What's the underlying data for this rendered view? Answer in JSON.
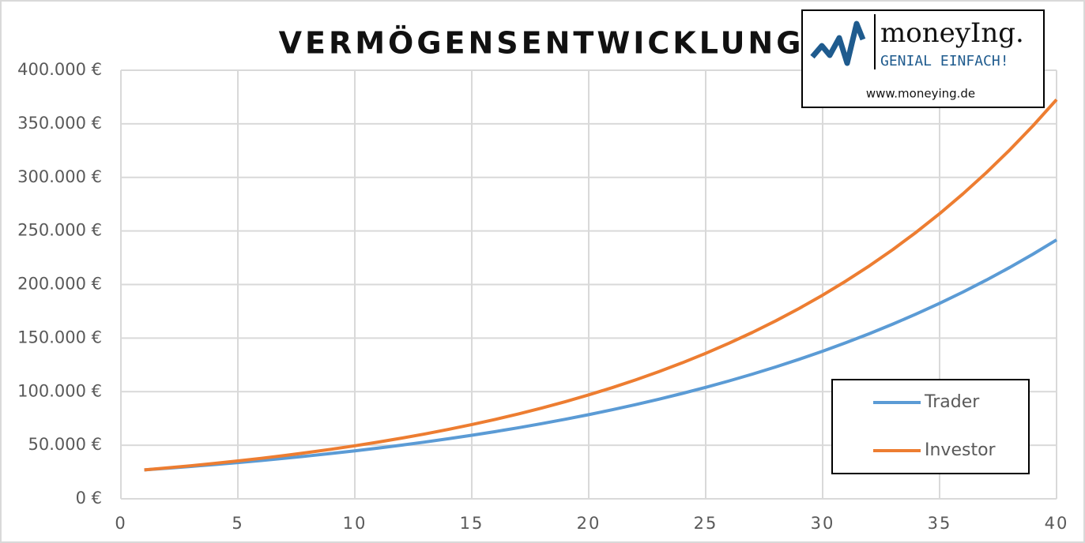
{
  "chart_data": {
    "type": "line",
    "title": "VERMÖGENSENTWICKLUNG",
    "x": [
      1,
      2,
      3,
      4,
      5,
      6,
      7,
      8,
      9,
      10,
      11,
      12,
      13,
      14,
      15,
      16,
      17,
      18,
      19,
      20,
      21,
      22,
      23,
      24,
      25,
      26,
      27,
      28,
      29,
      30,
      31,
      32,
      33,
      34,
      35,
      36,
      37,
      38,
      39,
      40
    ],
    "series": [
      {
        "name": "Trader",
        "color": "#5b9bd5",
        "values": [
          27000,
          28560,
          30210,
          31960,
          33810,
          35760,
          37830,
          40010,
          42330,
          44770,
          47360,
          50100,
          53000,
          56060,
          59300,
          62730,
          66350,
          70190,
          74250,
          78540,
          83080,
          87880,
          92960,
          98340,
          104020,
          110030,
          116390,
          123120,
          130240,
          137770,
          145730,
          154160,
          163070,
          172490,
          182460,
          193010,
          204170,
          215970,
          228460,
          241660
        ]
      },
      {
        "name": "Investor",
        "color": "#ed7d31",
        "values": [
          27000,
          28880,
          30890,
          33040,
          35340,
          37800,
          40430,
          43250,
          46260,
          49480,
          52920,
          56610,
          60550,
          64760,
          69270,
          74090,
          79250,
          84770,
          90670,
          96980,
          103730,
          110950,
          118680,
          126940,
          135780,
          145230,
          155340,
          166160,
          177720,
          190090,
          203330,
          217480,
          232620,
          248820,
          266140,
          284660,
          304480,
          325670,
          348350,
          372600
        ]
      }
    ],
    "xlim": [
      0,
      40
    ],
    "xticks": [
      0,
      5,
      10,
      15,
      20,
      25,
      30,
      35,
      40
    ],
    "ylim": [
      0,
      400000
    ],
    "yticks": [
      {
        "value": 0,
        "label": "0 €"
      },
      {
        "value": 50000,
        "label": "50.000 €"
      },
      {
        "value": 100000,
        "label": "100.000 €"
      },
      {
        "value": 150000,
        "label": "150.000 €"
      },
      {
        "value": 200000,
        "label": "200.000 €"
      },
      {
        "value": 250000,
        "label": "250.000 €"
      },
      {
        "value": 300000,
        "label": "300.000 €"
      },
      {
        "value": 350000,
        "label": "350.000 €"
      },
      {
        "value": 400000,
        "label": "400.000 €"
      }
    ],
    "grid": true,
    "legend": "lower right",
    "logo": {
      "name": "moneyIng.",
      "tagline": "GENIAL EINFACH!",
      "url": "www.moneying.de"
    }
  }
}
